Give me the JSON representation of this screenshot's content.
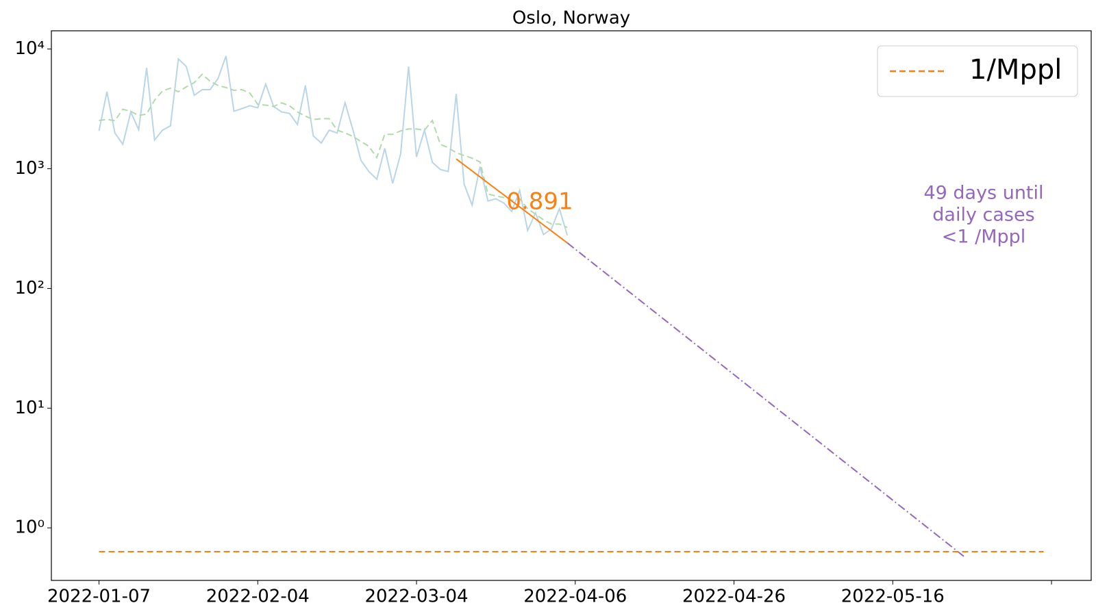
{
  "chart_data": {
    "type": "line",
    "title": "Oslo, Norway",
    "log_y": true,
    "xlim": [
      -6,
      125
    ],
    "ylim": [
      0.364,
      14200
    ],
    "xticks": [
      {
        "value": 0,
        "label": "2022-01-07"
      },
      {
        "value": 20,
        "label": "2022-02-04"
      },
      {
        "value": 40,
        "label": "2022-03-04"
      },
      {
        "value": 60,
        "label": "2022-04-06"
      },
      {
        "value": 80,
        "label": "2022-04-26"
      },
      {
        "value": 100,
        "label": "2022-05-16"
      },
      {
        "value": 120,
        "label": null
      }
    ],
    "yticks": [
      {
        "value": 1,
        "label": "10⁰"
      },
      {
        "value": 10,
        "label": "10¹"
      },
      {
        "value": 100,
        "label": "10²"
      },
      {
        "value": 1000,
        "label": "10³"
      },
      {
        "value": 10000,
        "label": "10⁴"
      }
    ],
    "legend_position": "upper right",
    "series": [
      {
        "color": "#b9d5e8",
        "style": "solid",
        "x": [
          0,
          1,
          2,
          3,
          4,
          5,
          6,
          7,
          8,
          9,
          10,
          11,
          12,
          13,
          14,
          15,
          16,
          17,
          18,
          19,
          20,
          21,
          22,
          23,
          24,
          25,
          26,
          27,
          28,
          29,
          30,
          31,
          32,
          33,
          34,
          35,
          36,
          37,
          38,
          39,
          40,
          41,
          42,
          43,
          44,
          45,
          46,
          47,
          48,
          49,
          50,
          51,
          52,
          53,
          54,
          55,
          56,
          57,
          58,
          59
        ],
        "values": [
          2070,
          4400,
          1990,
          1600,
          2980,
          2120,
          6950,
          1740,
          2100,
          2280,
          8280,
          7140,
          4110,
          4580,
          4580,
          5680,
          8750,
          3020,
          3180,
          3360,
          3230,
          5100,
          3310,
          2980,
          2900,
          2340,
          4960,
          1880,
          1640,
          2100,
          1990,
          3550,
          2100,
          1175,
          948,
          817,
          1480,
          754,
          1330,
          7140,
          1257,
          2100,
          1130,
          986,
          948,
          4220,
          743,
          497,
          1042,
          538,
          561,
          517,
          440,
          659,
          305,
          428,
          282,
          314,
          464,
          278
        ]
      },
      {
        "color": "#b0dba9",
        "style": "dashed",
        "x": [
          0,
          1,
          2,
          3,
          4,
          5,
          6,
          7,
          8,
          9,
          10,
          11,
          12,
          13,
          14,
          15,
          16,
          17,
          18,
          19,
          20,
          21,
          22,
          23,
          24,
          25,
          26,
          27,
          28,
          29,
          30,
          31,
          32,
          33,
          34,
          35,
          36,
          37,
          38,
          39,
          40,
          41,
          42,
          43,
          44,
          45,
          46,
          47,
          48,
          49,
          50,
          51,
          52,
          53,
          54,
          55,
          56,
          57,
          58,
          59
        ],
        "values": [
          2530,
          2580,
          2520,
          3140,
          3020,
          2780,
          2870,
          3740,
          4460,
          4710,
          4400,
          4830,
          5240,
          6150,
          5380,
          4960,
          4770,
          4520,
          4580,
          4290,
          3450,
          3400,
          3310,
          3550,
          3360,
          2980,
          2750,
          2580,
          2620,
          2620,
          2100,
          1990,
          1860,
          1690,
          1540,
          1240,
          1940,
          1940,
          2070,
          2150,
          2150,
          2100,
          2530,
          1600,
          1500,
          1360,
          1290,
          1225,
          1140,
          615,
          592,
          575,
          545,
          561,
          464,
          417,
          374,
          345,
          345,
          323
        ]
      },
      {
        "color": "#ff7f0e",
        "style": "solid",
        "x": [
          45,
          59
        ],
        "values": [
          1208,
          240
        ]
      },
      {
        "color": "#9467bd",
        "style": "dashdot",
        "x": [
          59,
          109
        ],
        "values": [
          240,
          0.575
        ]
      },
      {
        "name": "1/Mppl",
        "color": "#ff7f0e",
        "style": "dashed",
        "x": [
          0,
          119
        ],
        "values": [
          0.633,
          0.633
        ]
      }
    ],
    "annotations": [
      {
        "text": "0.891",
        "color": "#ff7f0e"
      },
      {
        "lines": [
          "49 days until",
          "daily cases",
          "<1 /Mppl"
        ],
        "color": "#9467bd"
      }
    ]
  }
}
